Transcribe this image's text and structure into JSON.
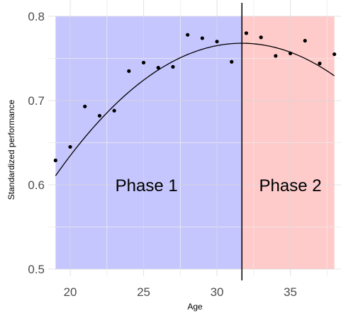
{
  "chart_data": {
    "type": "scatter",
    "xlabel": "Age",
    "ylabel": "Standardized performance",
    "xlim": [
      18.5,
      38.5
    ],
    "ylim": [
      0.5,
      0.8
    ],
    "x_ticks": [
      20,
      25,
      30,
      35
    ],
    "x_minor_ticks": [
      22.5,
      27.5,
      32.5,
      37.5
    ],
    "y_ticks": [
      0.5,
      0.6,
      0.7,
      0.8
    ],
    "y_minor_ticks": [
      0.55,
      0.65,
      0.75
    ],
    "grid": true,
    "points": [
      {
        "x": 19,
        "y": 0.629
      },
      {
        "x": 20,
        "y": 0.645
      },
      {
        "x": 21,
        "y": 0.693
      },
      {
        "x": 22,
        "y": 0.682
      },
      {
        "x": 23,
        "y": 0.688
      },
      {
        "x": 24,
        "y": 0.735
      },
      {
        "x": 25,
        "y": 0.745
      },
      {
        "x": 26,
        "y": 0.739
      },
      {
        "x": 27,
        "y": 0.74
      },
      {
        "x": 28,
        "y": 0.778
      },
      {
        "x": 29,
        "y": 0.774
      },
      {
        "x": 30,
        "y": 0.77
      },
      {
        "x": 31,
        "y": 0.746
      },
      {
        "x": 32,
        "y": 0.78
      },
      {
        "x": 33,
        "y": 0.775
      },
      {
        "x": 34,
        "y": 0.753
      },
      {
        "x": 35,
        "y": 0.756
      },
      {
        "x": 36,
        "y": 0.771
      },
      {
        "x": 37,
        "y": 0.744
      },
      {
        "x": 38,
        "y": 0.755
      }
    ],
    "fit_curve": {
      "type": "quadratic",
      "vertex_x": 31.7,
      "vertex_y": 0.768,
      "curvature": -0.000975,
      "x_range": [
        19,
        38
      ],
      "color": "#000000"
    },
    "phases": [
      {
        "label": "Phase 1",
        "x_start": 19,
        "x_end": 31.7,
        "color": "#8080ff",
        "opacity": 0.45,
        "label_x": 25.2,
        "label_y": 0.6
      },
      {
        "label": "Phase 2",
        "x_start": 31.7,
        "x_end": 38,
        "color": "#ff8080",
        "opacity": 0.42,
        "label_x": 35,
        "label_y": 0.6
      }
    ],
    "divider_x": 31.7
  }
}
